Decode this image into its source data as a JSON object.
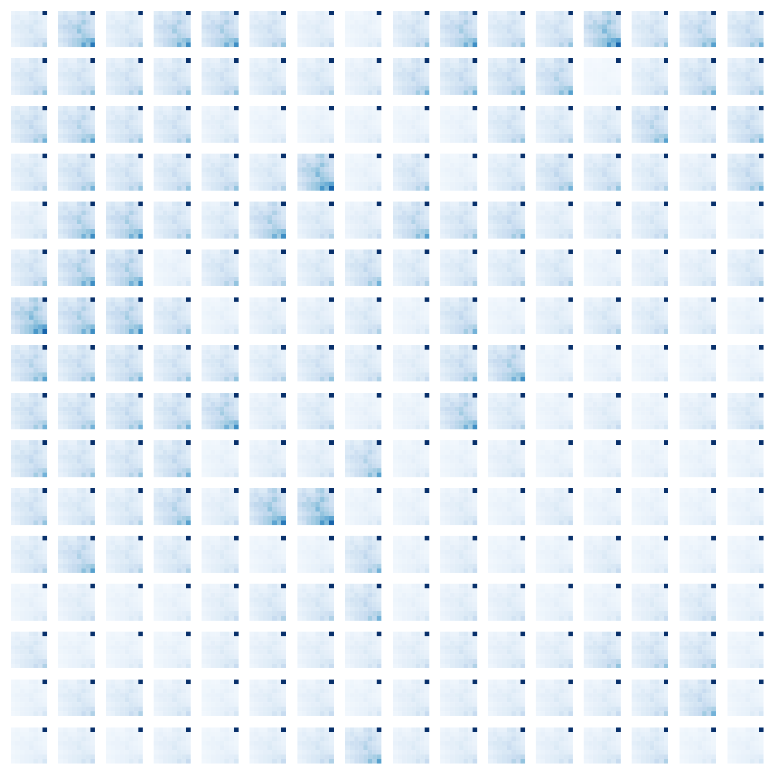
{
  "grid": {
    "colormap": [
      "#f7fbff",
      "#deebf7",
      "#c6dbef",
      "#9ecae1",
      "#6baed6",
      "#4292c6",
      "#2171b5",
      "#08519c",
      "#08306b"
    ],
    "template": [
      [
        0.15,
        0.2,
        0.15,
        0.15,
        0.3,
        0.35,
        0.2,
        0.1
      ],
      [
        0.2,
        0.25,
        0.2,
        0.2,
        0.25,
        0.3,
        0.25,
        0.2
      ],
      [
        0.2,
        0.2,
        0.3,
        0.25,
        0.3,
        0.4,
        0.3,
        0.2
      ],
      [
        0.25,
        0.3,
        0.3,
        0.35,
        0.4,
        0.3,
        0.25,
        0.2
      ],
      [
        0.2,
        0.25,
        0.3,
        0.3,
        0.45,
        0.35,
        0.3,
        0.25
      ],
      [
        0.15,
        0.2,
        0.25,
        0.3,
        0.3,
        0.4,
        0.35,
        0.3
      ],
      [
        0.2,
        0.25,
        0.3,
        0.35,
        0.4,
        0.45,
        0.5,
        0.55
      ],
      [
        0.15,
        0.2,
        0.3,
        0.35,
        0.4,
        0.6,
        0.45,
        0.8
      ]
    ],
    "peak": {
      "row": 0,
      "col": 7,
      "value": 1
    },
    "intensity": [
      [
        0.4,
        0.9,
        0.4,
        0.8,
        0.8,
        0.5,
        0.3,
        0.2,
        0.5,
        0.8,
        0.5,
        0.5,
        1,
        0.5,
        0.7,
        0.6
      ],
      [
        0.5,
        0.5,
        0.5,
        0.5,
        0.5,
        0.4,
        0.4,
        0.3,
        0.6,
        0.6,
        0.6,
        0.7,
        0.1,
        0.4,
        0.6,
        0.5
      ],
      [
        0.6,
        0.7,
        0.5,
        0.5,
        0.3,
        0.2,
        0.2,
        0.2,
        0.2,
        0.2,
        0.5,
        0.4,
        0.4,
        0.7,
        0.3,
        0.6
      ],
      [
        0.4,
        0.6,
        0.5,
        0.5,
        0.5,
        0.4,
        1,
        0.2,
        0.5,
        0.2,
        0.4,
        0.6,
        0.5,
        0.4,
        0.3,
        0.6
      ],
      [
        0.3,
        0.8,
        0.8,
        0.5,
        0.4,
        0.8,
        0.4,
        0.3,
        0.7,
        0.5,
        0.6,
        0.3,
        0.3,
        0.4,
        0.2,
        0.2
      ],
      [
        0.5,
        0.8,
        0.8,
        0.2,
        0.5,
        0.4,
        0.4,
        0.6,
        0.4,
        0.4,
        0.4,
        0.4,
        0.2,
        0.3,
        0.3,
        0.4
      ],
      [
        1,
        0.8,
        0.8,
        0.5,
        0.2,
        0.3,
        0.3,
        0.4,
        0.2,
        0.6,
        0.2,
        0.3,
        0.4,
        0.4,
        0.3,
        0.2
      ],
      [
        0.7,
        0.6,
        0.6,
        0.5,
        0.5,
        0.4,
        0.5,
        0.4,
        0.3,
        0.6,
        0.8,
        0.2,
        0.2,
        0.2,
        0.2,
        0.2
      ],
      [
        0.6,
        0.6,
        0.6,
        0.6,
        0.8,
        0.3,
        0.4,
        0.2,
        0.2,
        0.8,
        0.4,
        0.2,
        0.3,
        0.2,
        0.3,
        0.4
      ],
      [
        0.6,
        0.5,
        0.5,
        0.6,
        0.2,
        0.3,
        0.3,
        0.7,
        0.2,
        0.2,
        0.3,
        0.2,
        0.2,
        0.2,
        0.2,
        0.2
      ],
      [
        0.5,
        0.4,
        0.4,
        0.7,
        0.3,
        0.9,
        1,
        0.2,
        0.2,
        0.3,
        0.2,
        0.3,
        0.2,
        0.2,
        0.2,
        0.2
      ],
      [
        0.4,
        0.7,
        0.4,
        0.4,
        0.3,
        0.2,
        0.2,
        0.6,
        0.2,
        0.3,
        0.2,
        0.2,
        0.3,
        0.2,
        0.2,
        0.2
      ],
      [
        0.2,
        0.3,
        0.2,
        0.2,
        0.3,
        0.4,
        0.4,
        0.6,
        0.2,
        0.3,
        0.3,
        0.2,
        0.2,
        0.3,
        0.4,
        0.2
      ],
      [
        0.4,
        0.2,
        0.2,
        0.2,
        0.3,
        0.3,
        0.3,
        0.3,
        0.3,
        0.4,
        0.3,
        0.3,
        0.5,
        0.5,
        0.5,
        0.2
      ],
      [
        0.2,
        0.4,
        0.4,
        0.3,
        0.2,
        0.3,
        0.3,
        0.2,
        0.3,
        0.3,
        0.3,
        0.3,
        0.3,
        0.4,
        0.6,
        0.2
      ],
      [
        0.2,
        0.3,
        0.2,
        0.3,
        0.2,
        0.3,
        0.4,
        0.7,
        0.3,
        0.3,
        0.5,
        0.3,
        0.3,
        0.4,
        0.2,
        0.2
      ]
    ]
  }
}
